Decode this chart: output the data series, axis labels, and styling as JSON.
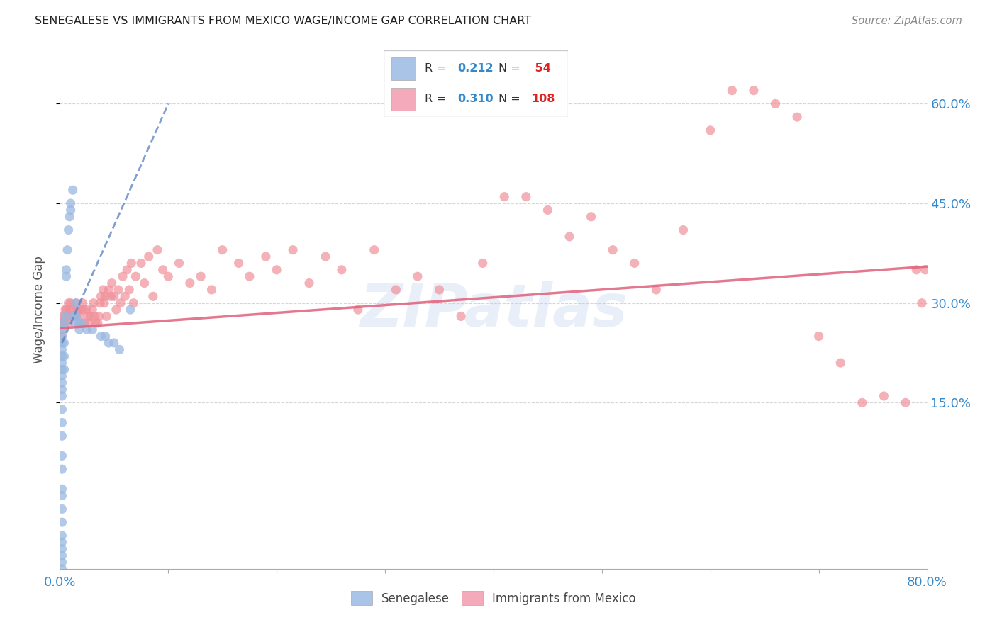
{
  "title": "SENEGALESE VS IMMIGRANTS FROM MEXICO WAGE/INCOME GAP CORRELATION CHART",
  "source": "Source: ZipAtlas.com",
  "ylabel": "Wage/Income Gap",
  "xlim": [
    0.0,
    0.8
  ],
  "ylim": [
    -0.1,
    0.68
  ],
  "yticks": [
    0.15,
    0.3,
    0.45,
    0.6
  ],
  "ytick_labels": [
    "15.0%",
    "30.0%",
    "45.0%",
    "60.0%"
  ],
  "xticks": [
    0.0,
    0.1,
    0.2,
    0.3,
    0.4,
    0.5,
    0.6,
    0.7,
    0.8
  ],
  "xtick_labels": [
    "0.0%",
    "",
    "",
    "",
    "",
    "",
    "",
    "",
    "80.0%"
  ],
  "watermark": "ZIPatlas",
  "blue_color": "#aac4e8",
  "pink_color": "#f5aabb",
  "blue_line_color": "#5580c0",
  "pink_line_color": "#e0607a",
  "blue_dot_color": "#99b8e0",
  "pink_dot_color": "#f0909a",
  "grid_color": "#cccccc",
  "title_color": "#222222",
  "source_color": "#888888",
  "legend_R_color": "#3388cc",
  "legend_N_color": "#dd2222",
  "blue_scatter_x": [
    0.002,
    0.002,
    0.002,
    0.002,
    0.002,
    0.002,
    0.002,
    0.002,
    0.002,
    0.002,
    0.002,
    0.002,
    0.002,
    0.002,
    0.002,
    0.002,
    0.002,
    0.002,
    0.002,
    0.002,
    0.002,
    0.002,
    0.002,
    0.002,
    0.002,
    0.002,
    0.004,
    0.004,
    0.004,
    0.004,
    0.005,
    0.006,
    0.006,
    0.007,
    0.008,
    0.009,
    0.01,
    0.01,
    0.012,
    0.013,
    0.014,
    0.015,
    0.015,
    0.017,
    0.018,
    0.02,
    0.025,
    0.03,
    0.038,
    0.042,
    0.045,
    0.05,
    0.055,
    0.065
  ],
  "blue_scatter_y": [
    0.26,
    0.25,
    0.24,
    0.23,
    0.22,
    0.21,
    0.2,
    0.19,
    0.18,
    0.17,
    0.16,
    0.14,
    0.12,
    0.1,
    0.07,
    0.05,
    0.02,
    -0.01,
    -0.03,
    -0.05,
    -0.06,
    -0.07,
    -0.08,
    -0.09,
    -0.1,
    0.01,
    0.27,
    0.24,
    0.22,
    0.2,
    0.28,
    0.35,
    0.34,
    0.38,
    0.41,
    0.43,
    0.44,
    0.45,
    0.47,
    0.28,
    0.27,
    0.28,
    0.3,
    0.27,
    0.26,
    0.27,
    0.26,
    0.26,
    0.25,
    0.25,
    0.24,
    0.24,
    0.23,
    0.29
  ],
  "pink_scatter_x": [
    0.002,
    0.002,
    0.002,
    0.003,
    0.003,
    0.004,
    0.004,
    0.005,
    0.005,
    0.006,
    0.007,
    0.008,
    0.008,
    0.009,
    0.01,
    0.01,
    0.011,
    0.012,
    0.013,
    0.015,
    0.015,
    0.016,
    0.017,
    0.018,
    0.019,
    0.02,
    0.021,
    0.022,
    0.023,
    0.025,
    0.026,
    0.027,
    0.028,
    0.03,
    0.031,
    0.032,
    0.033,
    0.035,
    0.036,
    0.037,
    0.038,
    0.04,
    0.041,
    0.042,
    0.043,
    0.045,
    0.047,
    0.048,
    0.05,
    0.052,
    0.054,
    0.056,
    0.058,
    0.06,
    0.062,
    0.064,
    0.066,
    0.068,
    0.07,
    0.075,
    0.078,
    0.082,
    0.086,
    0.09,
    0.095,
    0.1,
    0.11,
    0.12,
    0.13,
    0.14,
    0.15,
    0.165,
    0.175,
    0.19,
    0.2,
    0.215,
    0.23,
    0.245,
    0.26,
    0.275,
    0.29,
    0.31,
    0.33,
    0.35,
    0.37,
    0.39,
    0.41,
    0.43,
    0.45,
    0.47,
    0.49,
    0.51,
    0.53,
    0.55,
    0.575,
    0.6,
    0.62,
    0.64,
    0.66,
    0.68,
    0.7,
    0.72,
    0.74,
    0.76,
    0.78,
    0.79,
    0.795,
    0.798
  ],
  "pink_scatter_y": [
    0.27,
    0.26,
    0.25,
    0.28,
    0.27,
    0.28,
    0.27,
    0.29,
    0.27,
    0.29,
    0.28,
    0.3,
    0.27,
    0.29,
    0.3,
    0.28,
    0.29,
    0.28,
    0.28,
    0.3,
    0.28,
    0.29,
    0.29,
    0.28,
    0.27,
    0.29,
    0.3,
    0.29,
    0.27,
    0.29,
    0.28,
    0.27,
    0.28,
    0.29,
    0.3,
    0.28,
    0.27,
    0.27,
    0.28,
    0.3,
    0.31,
    0.32,
    0.3,
    0.31,
    0.28,
    0.32,
    0.31,
    0.33,
    0.31,
    0.29,
    0.32,
    0.3,
    0.34,
    0.31,
    0.35,
    0.32,
    0.36,
    0.3,
    0.34,
    0.36,
    0.33,
    0.37,
    0.31,
    0.38,
    0.35,
    0.34,
    0.36,
    0.33,
    0.34,
    0.32,
    0.38,
    0.36,
    0.34,
    0.37,
    0.35,
    0.38,
    0.33,
    0.37,
    0.35,
    0.29,
    0.38,
    0.32,
    0.34,
    0.32,
    0.28,
    0.36,
    0.46,
    0.46,
    0.44,
    0.4,
    0.43,
    0.38,
    0.36,
    0.32,
    0.41,
    0.56,
    0.62,
    0.62,
    0.6,
    0.58,
    0.25,
    0.21,
    0.15,
    0.16,
    0.15,
    0.35,
    0.3,
    0.35
  ],
  "blue_trendline_x": [
    0.002,
    0.1
  ],
  "blue_trendline_y": [
    0.24,
    0.6
  ],
  "pink_trendline_x": [
    0.0,
    0.8
  ],
  "pink_trendline_y": [
    0.262,
    0.355
  ]
}
